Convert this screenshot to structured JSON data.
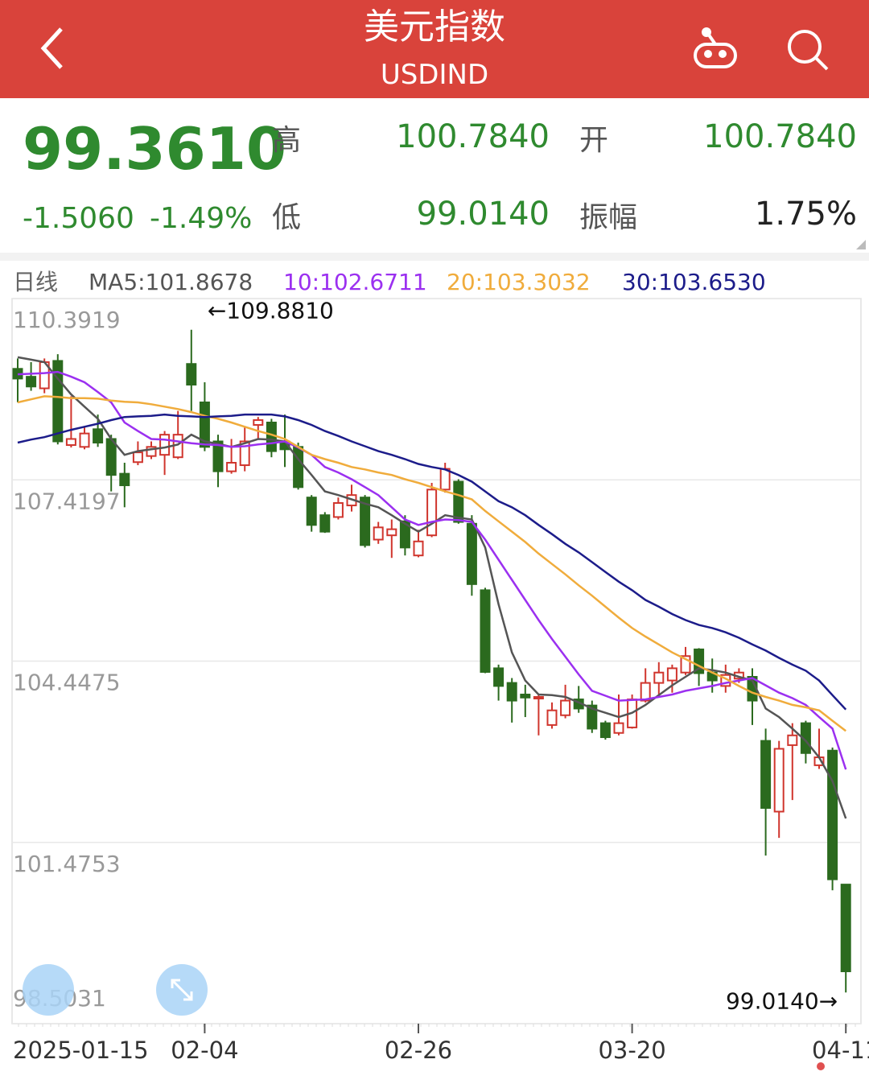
{
  "header": {
    "title": "美元指数",
    "subtitle": "USDIND"
  },
  "quote": {
    "price": "99.3610",
    "change": "-1.5060",
    "change_pct": "-1.49%",
    "high_label": "高",
    "high": "100.7840",
    "open_label": "开",
    "open": "100.7840",
    "low_label": "低",
    "low": "99.0140",
    "amplitude_label": "振幅",
    "amplitude": "1.75%"
  },
  "chart_data": {
    "type": "candlestick",
    "period": "日线",
    "categories": [
      "2025-01-15",
      null,
      null,
      null,
      null,
      null,
      null,
      null,
      null,
      null,
      null,
      null,
      null,
      null,
      "02-04",
      null,
      null,
      null,
      null,
      null,
      null,
      null,
      null,
      null,
      null,
      null,
      null,
      null,
      null,
      null,
      "02-26",
      null,
      null,
      null,
      null,
      null,
      null,
      null,
      null,
      null,
      null,
      null,
      null,
      null,
      null,
      null,
      "03-20",
      null,
      null,
      null,
      null,
      null,
      null,
      null,
      null,
      null,
      null,
      null,
      null,
      null,
      null,
      null,
      "04-11"
    ],
    "open": [
      109.24,
      109.11,
      108.92,
      109.37,
      107.99,
      107.96,
      108.25,
      108.09,
      107.52,
      107.71,
      107.81,
      107.83,
      107.79,
      109.32,
      108.69,
      108.05,
      107.56,
      107.66,
      108.32,
      108.36,
      108.05,
      107.96,
      107.13,
      106.84,
      106.81,
      107.0,
      107.13,
      106.44,
      106.51,
      106.74,
      106.18,
      106.51,
      107.26,
      107.39,
      106.7,
      105.61,
      104.33,
      104.09,
      103.9,
      103.84,
      103.4,
      103.56,
      103.82,
      103.72,
      103.43,
      103.27,
      103.36,
      103.8,
      104.09,
      104.13,
      104.26,
      104.64,
      104.26,
      104.04,
      104.16,
      104.19,
      103.14,
      101.98,
      103.07,
      103.43,
      102.74,
      102.98,
      100.784
    ],
    "high": [
      109.41,
      109.35,
      109.41,
      109.48,
      108.79,
      108.29,
      108.49,
      108.16,
      107.7,
      108.05,
      108.05,
      108.22,
      108.55,
      109.881,
      109.02,
      108.16,
      108.09,
      108.29,
      108.45,
      108.42,
      108.49,
      108.03,
      107.17,
      106.89,
      107.13,
      107.34,
      107.17,
      106.73,
      106.77,
      106.84,
      106.6,
      107.37,
      107.7,
      107.43,
      106.84,
      105.65,
      104.39,
      104.17,
      104.06,
      103.9,
      103.77,
      104.06,
      104.04,
      103.8,
      103.47,
      103.9,
      103.9,
      104.33,
      104.43,
      104.39,
      104.68,
      104.66,
      104.49,
      104.39,
      104.33,
      104.33,
      103.34,
      103.14,
      103.43,
      103.47,
      103.34,
      103.03,
      100.784
    ],
    "low": [
      108.69,
      108.88,
      108.84,
      108.0,
      107.95,
      107.92,
      107.96,
      107.23,
      106.97,
      107.66,
      107.76,
      107.5,
      107.76,
      108.55,
      107.89,
      107.3,
      107.52,
      107.56,
      108.09,
      107.79,
      107.63,
      107.26,
      106.57,
      106.55,
      106.77,
      106.9,
      106.31,
      106.37,
      106.14,
      106.18,
      106.15,
      106.48,
      107.21,
      106.7,
      105.52,
      104.25,
      103.8,
      103.44,
      103.53,
      103.23,
      103.34,
      103.51,
      103.6,
      103.27,
      103.16,
      103.23,
      103.34,
      103.77,
      103.86,
      103.93,
      104.22,
      104.04,
      103.93,
      103.93,
      104.09,
      103.4,
      101.26,
      101.55,
      102.17,
      102.77,
      102.68,
      100.69,
      99.014
    ],
    "close": [
      109.08,
      108.95,
      109.35,
      108.05,
      108.09,
      108.18,
      108.03,
      107.5,
      107.33,
      107.87,
      107.96,
      108.16,
      108.16,
      108.98,
      107.96,
      107.56,
      107.7,
      108.05,
      108.4,
      107.89,
      107.92,
      107.3,
      106.68,
      106.57,
      107.04,
      107.17,
      106.35,
      106.64,
      106.61,
      106.31,
      106.41,
      107.26,
      107.6,
      106.73,
      105.71,
      104.27,
      104.04,
      103.8,
      103.85,
      103.86,
      103.64,
      103.8,
      103.67,
      103.34,
      103.2,
      103.43,
      103.82,
      104.09,
      104.26,
      104.33,
      104.53,
      104.25,
      104.13,
      104.22,
      104.26,
      103.8,
      102.04,
      103.01,
      103.23,
      102.94,
      102.87,
      100.87,
      99.361
    ],
    "up_color": "#d0352d",
    "down_color": "#2b6a1e",
    "series": [
      {
        "label": "MA5:101.8678",
        "color": "#555555",
        "values": [
          109.43,
          109.39,
          109.35,
          109.08,
          108.82,
          108.62,
          108.42,
          108.09,
          107.83,
          107.89,
          107.92,
          107.95,
          108.0,
          108.16,
          108.05,
          108.01,
          107.96,
          108.02,
          108.09,
          108.08,
          108.05,
          107.76,
          107.5,
          107.23,
          107.17,
          107.1,
          107.03,
          106.97,
          106.84,
          106.7,
          106.57,
          106.7,
          106.84,
          106.8,
          106.77,
          106.31,
          105.38,
          104.59,
          104.13,
          103.9,
          103.89,
          103.86,
          103.77,
          103.67,
          103.6,
          103.53,
          103.6,
          103.73,
          103.89,
          104.05,
          104.19,
          104.33,
          104.3,
          104.26,
          104.19,
          104.13,
          103.67,
          103.53,
          103.34,
          103.14,
          102.87,
          102.48,
          101.8678
        ]
      },
      {
        "label": "10:102.6711",
        "color": "#9b30f0",
        "values": [
          109.15,
          109.16,
          109.17,
          109.19,
          109.11,
          109.02,
          108.86,
          108.69,
          108.36,
          108.22,
          108.09,
          108.08,
          108.05,
          108.02,
          108.0,
          107.99,
          107.96,
          107.97,
          108.0,
          108.02,
          108.05,
          107.95,
          107.83,
          107.63,
          107.54,
          107.43,
          107.3,
          107.17,
          106.97,
          106.77,
          106.68,
          106.73,
          106.77,
          106.76,
          106.73,
          106.44,
          106.11,
          105.78,
          105.45,
          105.12,
          104.81,
          104.52,
          104.23,
          103.96,
          103.88,
          103.8,
          103.81,
          103.82,
          103.86,
          103.9,
          103.96,
          104.0,
          104.04,
          104.09,
          104.13,
          104.17,
          104.05,
          103.93,
          103.84,
          103.73,
          103.53,
          103.34,
          102.6711
        ]
      },
      {
        "label": "20:103.3032",
        "color": "#f0ac3c",
        "values": [
          108.69,
          108.74,
          108.79,
          108.78,
          108.76,
          108.76,
          108.75,
          108.72,
          108.7,
          108.69,
          108.66,
          108.62,
          108.58,
          108.53,
          108.47,
          108.42,
          108.36,
          108.29,
          108.22,
          108.16,
          108.09,
          107.96,
          107.83,
          107.76,
          107.7,
          107.63,
          107.59,
          107.54,
          107.5,
          107.43,
          107.37,
          107.3,
          107.23,
          107.17,
          107.1,
          106.91,
          106.74,
          106.57,
          106.4,
          106.21,
          106.04,
          105.87,
          105.69,
          105.52,
          105.34,
          105.16,
          104.99,
          104.85,
          104.72,
          104.59,
          104.48,
          104.37,
          104.26,
          104.16,
          104.04,
          103.93,
          103.86,
          103.8,
          103.73,
          103.69,
          103.64,
          103.47,
          103.3032
        ]
      },
      {
        "label": "30:103.6530",
        "color": "#1c1c8a",
        "values": [
          108.03,
          108.08,
          108.12,
          108.18,
          108.24,
          108.29,
          108.34,
          108.4,
          108.45,
          108.46,
          108.47,
          108.49,
          108.47,
          108.46,
          108.45,
          108.46,
          108.47,
          108.49,
          108.49,
          108.49,
          108.46,
          108.4,
          108.32,
          108.22,
          108.14,
          108.05,
          107.97,
          107.89,
          107.83,
          107.76,
          107.68,
          107.63,
          107.59,
          107.5,
          107.39,
          107.23,
          107.07,
          106.97,
          106.84,
          106.68,
          106.53,
          106.37,
          106.23,
          106.07,
          105.91,
          105.75,
          105.61,
          105.45,
          105.34,
          105.22,
          105.12,
          105.04,
          104.99,
          104.92,
          104.83,
          104.72,
          104.62,
          104.5,
          104.39,
          104.29,
          104.13,
          103.89,
          103.653
        ]
      }
    ],
    "ylim": [
      98.5031,
      110.3919
    ],
    "yticks": [
      110.3919,
      107.4197,
      104.4475,
      101.4753,
      98.5031
    ],
    "grid": true,
    "max_label": "←109.8810",
    "min_label": "99.0140→"
  }
}
